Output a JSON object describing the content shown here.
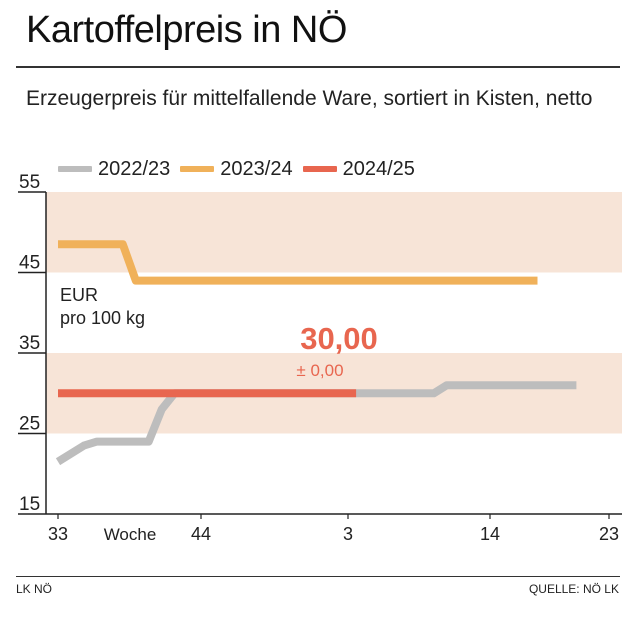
{
  "title": "Kartoffelpreis in NÖ",
  "subtitle": "Erzeugerpreis für mittelfallende Ware, sortiert in Kisten, netto",
  "footer": {
    "left": "LK NÖ",
    "right": "QUELLE: NÖ LK"
  },
  "colors": {
    "band": "#f7e4d7",
    "s2022": "#bdbdbd",
    "s2023": "#f0b15a",
    "s2024": "#e8664f",
    "axis": "#222222"
  },
  "chart_data": {
    "type": "line",
    "unit_label": [
      "EUR",
      "pro 100 kg"
    ],
    "xlabel": "Woche",
    "x_ticks": [
      "33",
      "44",
      "3",
      "14",
      "23"
    ],
    "ylim": [
      15,
      55
    ],
    "y_ticks": [
      "15",
      "25",
      "35",
      "45",
      "55"
    ],
    "highlight_bands": [
      [
        25,
        35
      ],
      [
        45,
        55
      ]
    ],
    "annotation": {
      "value": "30,00",
      "change": "± 0,00"
    },
    "series": [
      {
        "name": "2022/23",
        "color": "#bdbdbd",
        "points": [
          [
            0,
            21.5
          ],
          [
            2,
            23.5
          ],
          [
            3,
            24
          ],
          [
            7,
            24
          ],
          [
            8,
            28
          ],
          [
            9,
            30
          ],
          [
            29,
            30
          ],
          [
            30,
            31
          ],
          [
            40,
            31
          ]
        ]
      },
      {
        "name": "2023/24",
        "color": "#f0b15a",
        "points": [
          [
            0,
            48.5
          ],
          [
            5,
            48.5
          ],
          [
            6,
            44
          ],
          [
            37,
            44
          ]
        ]
      },
      {
        "name": "2024/25",
        "color": "#e8664f",
        "points": [
          [
            0,
            30
          ],
          [
            23,
            30
          ]
        ]
      }
    ]
  }
}
